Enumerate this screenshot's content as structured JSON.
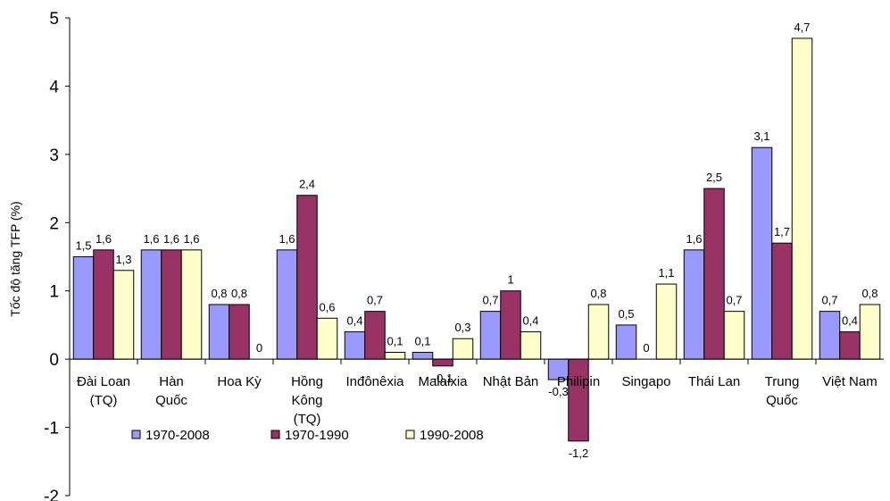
{
  "chart_data": {
    "type": "bar",
    "title": "",
    "xlabel": "",
    "ylabel": "Tốc độ tăng TFP (%)",
    "ylim": [
      -2,
      5
    ],
    "yticks": [
      "-2",
      "-1",
      "0",
      "1",
      "2",
      "3",
      "4",
      "5"
    ],
    "grid": false,
    "legend_position": "bottom-left",
    "categories": [
      [
        "Đài Loan",
        "(TQ)"
      ],
      [
        "Hàn",
        "Quốc"
      ],
      [
        "Hoa Kỳ"
      ],
      [
        "Hồng",
        "Kông",
        "(TQ)"
      ],
      [
        "Inđônêxia"
      ],
      [
        "Malaixia"
      ],
      [
        "Nhật Bản"
      ],
      [
        "Philipin"
      ],
      [
        "Singapo"
      ],
      [
        "Thái Lan"
      ],
      [
        "Trung",
        "Quốc"
      ],
      [
        "Việt Nam"
      ]
    ],
    "series": [
      {
        "name": "1970-2008",
        "color": "#9999ff",
        "values": [
          1.5,
          1.6,
          0.8,
          1.6,
          0.4,
          0.1,
          0.7,
          -0.3,
          0.5,
          1.6,
          3.1,
          0.7
        ],
        "labels": [
          "1,5",
          "1,6",
          "0,8",
          "1,6",
          "0,4",
          "0,1",
          "0,7",
          "-0,3",
          "0,5",
          "1,6",
          "3,1",
          "0,7"
        ]
      },
      {
        "name": "1970-1990",
        "color": "#993366",
        "values": [
          1.6,
          1.6,
          0.8,
          2.4,
          0.7,
          -0.1,
          1.0,
          -1.2,
          0,
          2.5,
          1.7,
          0.4
        ],
        "labels": [
          "1,6",
          "1,6",
          "0,8",
          "2,4",
          "0,7",
          "-0,1",
          "1",
          "-1,2",
          "0",
          "2,5",
          "1,7",
          "0,4"
        ]
      },
      {
        "name": "1990-2008",
        "color": "#ffffcc",
        "values": [
          1.3,
          1.6,
          0,
          0.6,
          0.1,
          0.3,
          0.4,
          0.8,
          1.1,
          0.7,
          4.7,
          0.8
        ],
        "labels": [
          "1,3",
          "1,6",
          "0",
          "0,6",
          "0,1",
          "0,3",
          "0,4",
          "0,8",
          "1,1",
          "0,7",
          "4,7",
          "0,8"
        ]
      }
    ]
  }
}
